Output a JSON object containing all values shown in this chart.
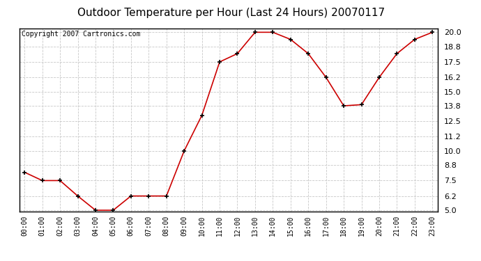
{
  "title": "Outdoor Temperature per Hour (Last 24 Hours) 20070117",
  "copyright_text": "Copyright 2007 Cartronics.com",
  "hours": [
    0,
    1,
    2,
    3,
    4,
    5,
    6,
    7,
    8,
    9,
    10,
    11,
    12,
    13,
    14,
    15,
    16,
    17,
    18,
    19,
    20,
    21,
    22,
    23
  ],
  "hour_labels": [
    "00:00",
    "01:00",
    "02:00",
    "03:00",
    "04:00",
    "05:00",
    "06:00",
    "07:00",
    "08:00",
    "09:00",
    "10:00",
    "11:00",
    "12:00",
    "13:00",
    "14:00",
    "15:00",
    "16:00",
    "17:00",
    "18:00",
    "19:00",
    "20:00",
    "21:00",
    "22:00",
    "23:00"
  ],
  "temperatures": [
    8.2,
    7.5,
    7.5,
    6.2,
    5.0,
    5.0,
    6.2,
    6.2,
    6.2,
    10.0,
    13.0,
    17.5,
    18.2,
    20.0,
    20.0,
    19.4,
    18.2,
    16.2,
    13.8,
    13.9,
    16.2,
    18.2,
    19.4,
    20.0
  ],
  "ylim_min": 5.0,
  "ylim_max": 20.0,
  "ytick_values": [
    5.0,
    6.2,
    7.5,
    8.8,
    10.0,
    11.2,
    12.5,
    13.8,
    15.0,
    16.2,
    17.5,
    18.8,
    20.0
  ],
  "line_color": "#cc0000",
  "marker_color": "#000000",
  "bg_color": "#ffffff",
  "plot_bg_color": "#ffffff",
  "grid_color": "#c8c8c8",
  "title_fontsize": 11,
  "copyright_fontsize": 7,
  "tick_fontsize": 7
}
